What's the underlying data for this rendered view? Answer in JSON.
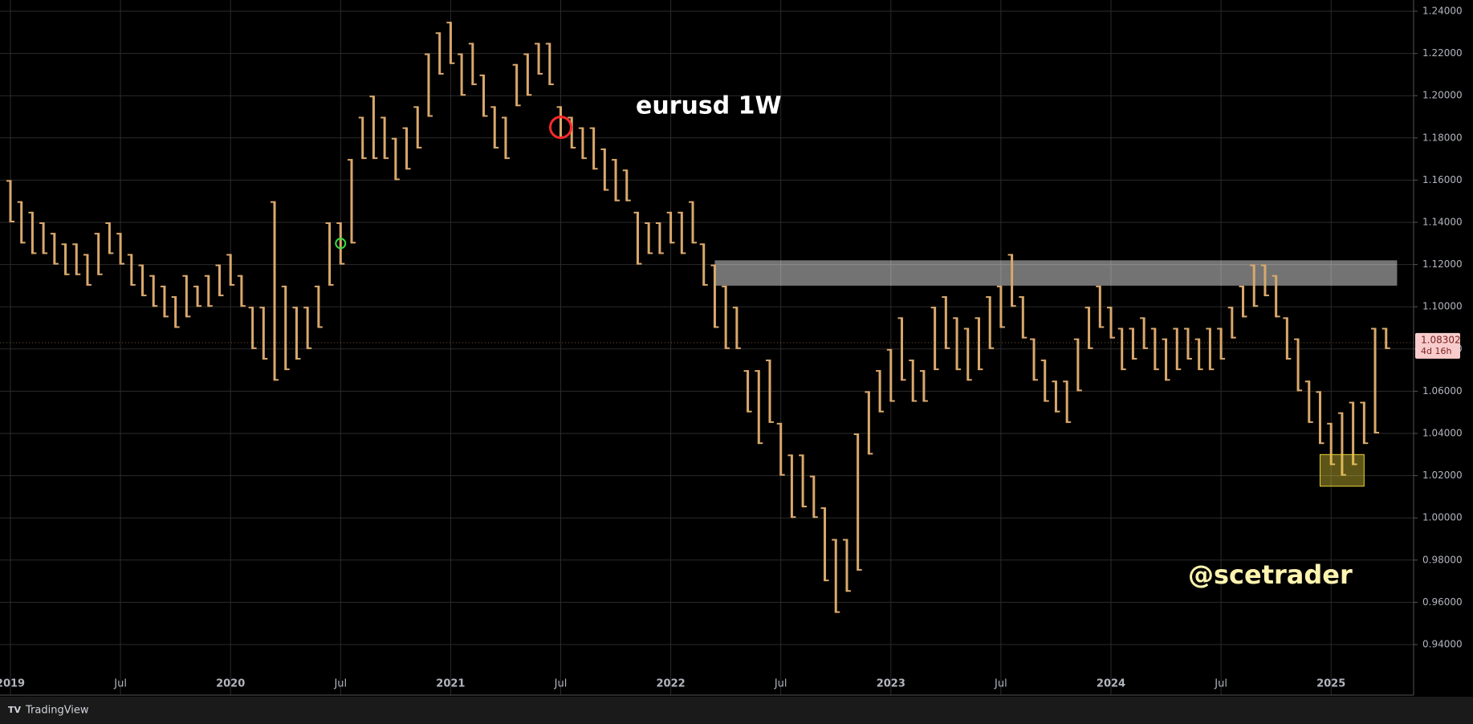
{
  "chart_data": {
    "type": "ohlc-range",
    "title": "eurusd 1W",
    "watermark": "@scetrader",
    "brand": "TradingView",
    "color": "#d9a86c",
    "x": [
      2019.0,
      2019.05,
      2019.1,
      2019.15,
      2019.2,
      2019.25,
      2019.3,
      2019.35,
      2019.4,
      2019.45,
      2019.5,
      2019.55,
      2019.6,
      2019.65,
      2019.7,
      2019.75,
      2019.8,
      2019.85,
      2019.9,
      2019.95,
      2020.0,
      2020.05,
      2020.1,
      2020.15,
      2020.2,
      2020.25,
      2020.3,
      2020.35,
      2020.4,
      2020.45,
      2020.5,
      2020.55,
      2020.6,
      2020.65,
      2020.7,
      2020.75,
      2020.8,
      2020.85,
      2020.9,
      2020.95,
      2021.0,
      2021.05,
      2021.1,
      2021.15,
      2021.2,
      2021.25,
      2021.3,
      2021.35,
      2021.4,
      2021.45,
      2021.5,
      2021.55,
      2021.6,
      2021.65,
      2021.7,
      2021.75,
      2021.8,
      2021.85,
      2021.9,
      2021.95,
      2022.0,
      2022.05,
      2022.1,
      2022.15,
      2022.2,
      2022.25,
      2022.3,
      2022.35,
      2022.4,
      2022.45,
      2022.5,
      2022.55,
      2022.6,
      2022.65,
      2022.7,
      2022.75,
      2022.8,
      2022.85,
      2022.9,
      2022.95,
      2023.0,
      2023.05,
      2023.1,
      2023.15,
      2023.2,
      2023.25,
      2023.3,
      2023.35,
      2023.4,
      2023.45,
      2023.5,
      2023.55,
      2023.6,
      2023.65,
      2023.7,
      2023.75,
      2023.8,
      2023.85,
      2023.9,
      2023.95,
      2024.0,
      2024.05,
      2024.1,
      2024.15,
      2024.2,
      2024.25,
      2024.3,
      2024.35,
      2024.4,
      2024.45,
      2024.5,
      2024.55,
      2024.6,
      2024.65,
      2024.7,
      2024.75,
      2024.8,
      2024.85,
      2024.9,
      2024.95,
      2025.0,
      2025.05,
      2025.1,
      2025.15,
      2025.2,
      2025.25
    ],
    "low": [
      1.14,
      1.13,
      1.125,
      1.125,
      1.12,
      1.115,
      1.115,
      1.11,
      1.115,
      1.125,
      1.12,
      1.11,
      1.105,
      1.1,
      1.095,
      1.09,
      1.095,
      1.1,
      1.1,
      1.105,
      1.11,
      1.1,
      1.08,
      1.075,
      1.065,
      1.07,
      1.075,
      1.08,
      1.09,
      1.11,
      1.12,
      1.13,
      1.17,
      1.17,
      1.17,
      1.16,
      1.165,
      1.175,
      1.19,
      1.21,
      1.215,
      1.2,
      1.205,
      1.19,
      1.175,
      1.17,
      1.195,
      1.2,
      1.21,
      1.205,
      1.18,
      1.175,
      1.17,
      1.165,
      1.155,
      1.15,
      1.15,
      1.12,
      1.125,
      1.125,
      1.13,
      1.125,
      1.13,
      1.11,
      1.09,
      1.08,
      1.08,
      1.05,
      1.035,
      1.045,
      1.02,
      1.0,
      1.005,
      1.0,
      0.97,
      0.955,
      0.965,
      0.975,
      1.03,
      1.05,
      1.055,
      1.065,
      1.055,
      1.055,
      1.07,
      1.08,
      1.07,
      1.065,
      1.07,
      1.08,
      1.09,
      1.1,
      1.085,
      1.065,
      1.055,
      1.05,
      1.045,
      1.06,
      1.08,
      1.09,
      1.085,
      1.07,
      1.075,
      1.08,
      1.07,
      1.065,
      1.07,
      1.075,
      1.07,
      1.07,
      1.075,
      1.085,
      1.095,
      1.1,
      1.105,
      1.095,
      1.075,
      1.06,
      1.045,
      1.035,
      1.025,
      1.02,
      1.025,
      1.035,
      1.04,
      1.08
    ],
    "high": [
      1.16,
      1.15,
      1.145,
      1.14,
      1.135,
      1.13,
      1.13,
      1.125,
      1.135,
      1.14,
      1.135,
      1.125,
      1.12,
      1.115,
      1.11,
      1.105,
      1.115,
      1.11,
      1.115,
      1.12,
      1.125,
      1.115,
      1.1,
      1.1,
      1.15,
      1.11,
      1.1,
      1.1,
      1.11,
      1.14,
      1.14,
      1.17,
      1.19,
      1.2,
      1.19,
      1.18,
      1.185,
      1.195,
      1.22,
      1.23,
      1.235,
      1.22,
      1.225,
      1.21,
      1.195,
      1.19,
      1.215,
      1.22,
      1.225,
      1.225,
      1.195,
      1.19,
      1.185,
      1.185,
      1.175,
      1.17,
      1.165,
      1.145,
      1.14,
      1.14,
      1.145,
      1.145,
      1.15,
      1.13,
      1.12,
      1.11,
      1.1,
      1.07,
      1.07,
      1.075,
      1.045,
      1.03,
      1.03,
      1.02,
      1.005,
      0.99,
      0.99,
      1.04,
      1.06,
      1.07,
      1.08,
      1.095,
      1.075,
      1.07,
      1.1,
      1.105,
      1.095,
      1.09,
      1.095,
      1.105,
      1.11,
      1.125,
      1.105,
      1.085,
      1.075,
      1.065,
      1.065,
      1.085,
      1.1,
      1.11,
      1.1,
      1.09,
      1.09,
      1.095,
      1.09,
      1.085,
      1.09,
      1.09,
      1.085,
      1.09,
      1.09,
      1.1,
      1.11,
      1.12,
      1.12,
      1.115,
      1.095,
      1.085,
      1.065,
      1.06,
      1.045,
      1.05,
      1.055,
      1.055,
      1.09,
      1.09
    ],
    "xlim": [
      2018.99,
      2025.4
    ],
    "ylim": [
      0.93,
      1.243
    ],
    "yticks": [
      {
        "value": 0.94,
        "label": "0.94000"
      },
      {
        "value": 0.96,
        "label": "0.96000"
      },
      {
        "value": 0.98,
        "label": "0.98000"
      },
      {
        "value": 1.0,
        "label": "1.00000"
      },
      {
        "value": 1.02,
        "label": "1.02000"
      },
      {
        "value": 1.04,
        "label": "1.04000"
      },
      {
        "value": 1.06,
        "label": "1.06000"
      },
      {
        "value": 1.08,
        "label": "1.08000"
      },
      {
        "value": 1.1,
        "label": "1.10000"
      },
      {
        "value": 1.12,
        "label": "1.12000"
      },
      {
        "value": 1.14,
        "label": "1.14000"
      },
      {
        "value": 1.16,
        "label": "1.16000"
      },
      {
        "value": 1.18,
        "label": "1.18000"
      },
      {
        "value": 1.2,
        "label": "1.20000"
      },
      {
        "value": 1.22,
        "label": "1.22000"
      },
      {
        "value": 1.24,
        "label": "1.24000"
      }
    ],
    "xticks": [
      {
        "value": 2019,
        "label": "2019"
      },
      {
        "value": 2019.5,
        "label": "Jul"
      },
      {
        "value": 2020,
        "label": "2020"
      },
      {
        "value": 2020.5,
        "label": "Jul"
      },
      {
        "value": 2021,
        "label": "2021"
      },
      {
        "value": 2021.5,
        "label": "Jul"
      },
      {
        "value": 2022,
        "label": "2022"
      },
      {
        "value": 2022.5,
        "label": "Jul"
      },
      {
        "value": 2023,
        "label": "2023"
      },
      {
        "value": 2023.5,
        "label": "Jul"
      },
      {
        "value": 2024,
        "label": "2024"
      },
      {
        "value": 2024.5,
        "label": "Jul"
      },
      {
        "value": 2025,
        "label": "2025"
      }
    ],
    "grid": true,
    "last_price": 1.08302,
    "countdown": "4d 16h",
    "resistance_zone": {
      "x": [
        2022.2,
        2025.3
      ],
      "y": [
        1.11,
        1.122
      ],
      "color": "#ffffff"
    },
    "support_box": {
      "x": [
        2024.95,
        2025.15
      ],
      "y": [
        1.015,
        1.03
      ],
      "color": "#e8d33a"
    },
    "markers": [
      {
        "x": 2020.5,
        "y": 1.13,
        "color": "#3ddc3d"
      },
      {
        "x": 2021.5,
        "y": 1.185,
        "color": "#ff2a2a"
      }
    ]
  }
}
